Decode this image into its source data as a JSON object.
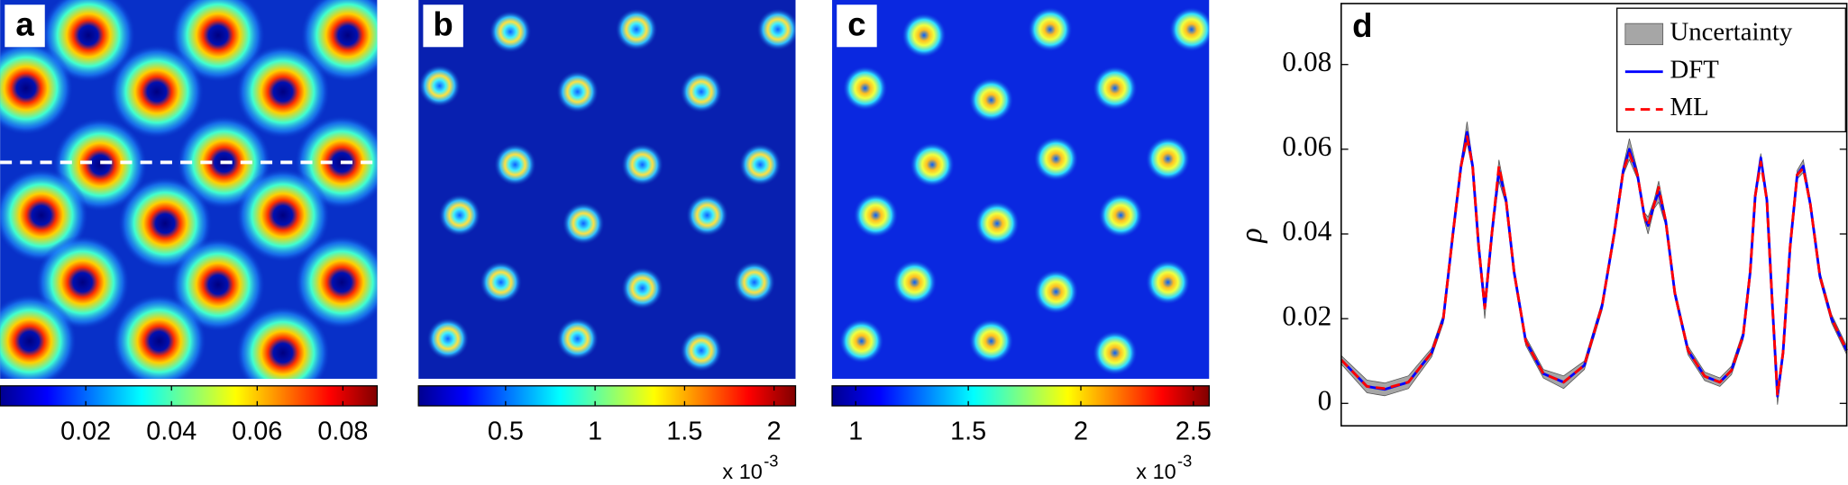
{
  "chart_data": [
    {
      "type": "heatmap",
      "label": "a",
      "colorbar": {
        "lim": [
          0,
          0.088
        ],
        "ticks": [
          0.02,
          0.04,
          0.06,
          0.08
        ]
      }
    },
    {
      "type": "heatmap",
      "label": "b",
      "colorbar": {
        "lim": [
          0.013,
          2.12
        ],
        "ticks": [
          0.5,
          1,
          1.5,
          2
        ],
        "scale_label": "x 10",
        "scale_exponent": "-3"
      }
    },
    {
      "type": "heatmap",
      "label": "c",
      "colorbar": {
        "lim": [
          0.895,
          2.57
        ],
        "ticks": [
          1,
          1.5,
          2,
          2.5
        ],
        "scale_label": "x 10",
        "scale_exponent": "-3"
      }
    },
    {
      "type": "line",
      "label": "d",
      "ylabel": "ρ",
      "x": [
        0,
        0.051,
        0.086,
        0.133,
        0.179,
        0.202,
        0.221,
        0.237,
        0.249,
        0.26,
        0.272,
        0.284,
        0.298,
        0.312,
        0.326,
        0.342,
        0.365,
        0.4,
        0.44,
        0.481,
        0.516,
        0.54,
        0.558,
        0.57,
        0.586,
        0.6,
        0.607,
        0.619,
        0.628,
        0.642,
        0.66,
        0.686,
        0.719,
        0.749,
        0.772,
        0.795,
        0.809,
        0.819,
        0.83,
        0.842,
        0.853,
        0.863,
        0.874,
        0.888,
        0.902,
        0.914,
        0.928,
        0.947,
        0.97,
        1
      ],
      "xlim": [
        0,
        1
      ],
      "ylim": [
        -0.0053,
        0.0944
      ],
      "yticks": [
        0,
        0.02,
        0.04,
        0.06,
        0.08
      ],
      "legend": "upper right",
      "series": [
        {
          "name": "Uncertainty",
          "color": "#a6a6a6",
          "upper": [
            0.0113,
            0.0055,
            0.0048,
            0.0065,
            0.013,
            0.021,
            0.041,
            0.057,
            0.0665,
            0.057,
            0.038,
            0.025,
            0.041,
            0.0575,
            0.049,
            0.032,
            0.0157,
            0.008,
            0.0065,
            0.01,
            0.024,
            0.041,
            0.056,
            0.0625,
            0.055,
            0.045,
            0.044,
            0.048,
            0.0525,
            0.044,
            0.027,
            0.0135,
            0.0074,
            0.006,
            0.0088,
            0.017,
            0.032,
            0.05,
            0.059,
            0.049,
            0.024,
            0.0037,
            0.013,
            0.038,
            0.055,
            0.0575,
            0.048,
            0.031,
            0.021,
            0.0135
          ],
          "lower": [
            0.0093,
            0.0025,
            0.0018,
            0.0035,
            0.011,
            0.019,
            0.039,
            0.055,
            0.0615,
            0.055,
            0.036,
            0.02,
            0.039,
            0.0525,
            0.047,
            0.03,
            0.0137,
            0.006,
            0.0035,
            0.008,
            0.022,
            0.039,
            0.054,
            0.0575,
            0.053,
            0.043,
            0.04,
            0.046,
            0.0475,
            0.042,
            0.025,
            0.0115,
            0.0054,
            0.004,
            0.0068,
            0.015,
            0.03,
            0.048,
            0.057,
            0.047,
            0.022,
            -0.0003,
            0.011,
            0.036,
            0.053,
            0.0545,
            0.046,
            0.029,
            0.019,
            0.0115
          ]
        },
        {
          "name": "DFT",
          "color": "#0000ff",
          "values": [
            0.0103,
            0.004,
            0.0033,
            0.005,
            0.012,
            0.02,
            0.04,
            0.056,
            0.064,
            0.056,
            0.037,
            0.0225,
            0.04,
            0.055,
            0.048,
            0.031,
            0.0147,
            0.007,
            0.005,
            0.009,
            0.023,
            0.04,
            0.055,
            0.06,
            0.054,
            0.044,
            0.042,
            0.047,
            0.05,
            0.043,
            0.026,
            0.0125,
            0.0064,
            0.005,
            0.0078,
            0.016,
            0.031,
            0.049,
            0.058,
            0.048,
            0.023,
            0.0017,
            0.012,
            0.037,
            0.054,
            0.056,
            0.047,
            0.03,
            0.02,
            0.0125
          ]
        },
        {
          "name": "ML",
          "color": "#ff0000",
          "dash": true,
          "values": [
            0.0103,
            0.004,
            0.0035,
            0.005,
            0.012,
            0.02,
            0.04,
            0.056,
            0.063,
            0.056,
            0.037,
            0.0225,
            0.04,
            0.056,
            0.048,
            0.031,
            0.0147,
            0.007,
            0.005,
            0.009,
            0.023,
            0.04,
            0.055,
            0.059,
            0.054,
            0.044,
            0.042,
            0.047,
            0.051,
            0.043,
            0.026,
            0.0125,
            0.0064,
            0.005,
            0.0078,
            0.016,
            0.031,
            0.049,
            0.057,
            0.048,
            0.023,
            0.0019,
            0.012,
            0.037,
            0.054,
            0.0555,
            0.047,
            0.03,
            0.02,
            0.0125
          ]
        }
      ]
    }
  ]
}
